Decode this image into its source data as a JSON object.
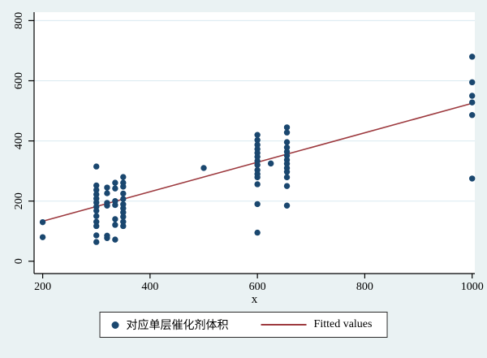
{
  "figure": {
    "background_color": "#eaf2f3",
    "plot_background_color": "#ffffff",
    "grid_color": "#d9e9f0",
    "axis_color": "#000000",
    "text_color": "#000000",
    "legend_border_color": "#2b2b2b",
    "legend_background_color": "#ffffff"
  },
  "chart_data": {
    "type": "scatter",
    "title": "",
    "xlabel": "x",
    "ylabel": "",
    "xlim": [
      184,
      1005
    ],
    "ylim": [
      -41,
      828
    ],
    "x_ticks": [
      200,
      400,
      600,
      800,
      1000
    ],
    "y_ticks": [
      0,
      200,
      400,
      600,
      800
    ],
    "grid_ticks": [
      200,
      400,
      600,
      800
    ],
    "grid": "horizontal",
    "legend_position": "bottom-center",
    "series": [
      {
        "name": "对应单层催化剂体积",
        "type": "scatter",
        "marker": "circle",
        "color": "#1a476f",
        "points": [
          [
            200,
            130
          ],
          [
            200,
            80
          ],
          [
            300,
            315
          ],
          [
            300,
            252
          ],
          [
            300,
            237
          ],
          [
            300,
            222
          ],
          [
            300,
            208
          ],
          [
            300,
            195
          ],
          [
            300,
            181
          ],
          [
            300,
            168
          ],
          [
            300,
            150
          ],
          [
            300,
            131
          ],
          [
            300,
            117
          ],
          [
            300,
            86
          ],
          [
            300,
            64
          ],
          [
            320,
            245
          ],
          [
            320,
            226
          ],
          [
            320,
            194
          ],
          [
            320,
            185
          ],
          [
            320,
            85
          ],
          [
            320,
            77
          ],
          [
            335,
            261
          ],
          [
            335,
            242
          ],
          [
            335,
            200
          ],
          [
            335,
            187
          ],
          [
            335,
            140
          ],
          [
            335,
            121
          ],
          [
            335,
            72
          ],
          [
            350,
            280
          ],
          [
            350,
            261
          ],
          [
            350,
            248
          ],
          [
            350,
            225
          ],
          [
            350,
            207
          ],
          [
            350,
            189
          ],
          [
            350,
            176
          ],
          [
            350,
            162
          ],
          [
            350,
            148
          ],
          [
            350,
            131
          ],
          [
            350,
            117
          ],
          [
            500,
            310
          ],
          [
            600,
            420
          ],
          [
            600,
            403
          ],
          [
            600,
            387
          ],
          [
            600,
            373
          ],
          [
            600,
            360
          ],
          [
            600,
            347
          ],
          [
            600,
            333
          ],
          [
            600,
            320
          ],
          [
            600,
            303
          ],
          [
            600,
            290
          ],
          [
            600,
            279
          ],
          [
            600,
            256
          ],
          [
            600,
            190
          ],
          [
            600,
            95
          ],
          [
            625,
            325
          ],
          [
            655,
            445
          ],
          [
            655,
            428
          ],
          [
            655,
            396
          ],
          [
            655,
            378
          ],
          [
            655,
            364
          ],
          [
            655,
            351
          ],
          [
            655,
            337
          ],
          [
            655,
            324
          ],
          [
            655,
            310
          ],
          [
            655,
            297
          ],
          [
            655,
            279
          ],
          [
            655,
            250
          ],
          [
            655,
            185
          ],
          [
            1000,
            680
          ],
          [
            1000,
            595
          ],
          [
            1000,
            550
          ],
          [
            1000,
            528
          ],
          [
            1000,
            486
          ],
          [
            1000,
            275
          ]
        ]
      },
      {
        "name": "Fitted values",
        "type": "line",
        "color": "#9d3a3f",
        "points": [
          [
            200,
            133
          ],
          [
            1000,
            525
          ]
        ]
      }
    ]
  }
}
